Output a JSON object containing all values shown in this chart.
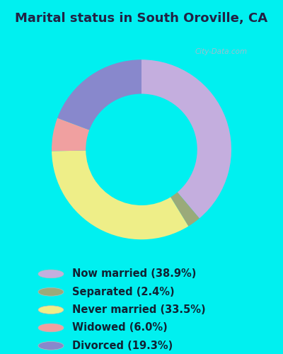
{
  "title": "Marital status in South Oroville, CA",
  "categories": [
    "Now married",
    "Separated",
    "Never married",
    "Widowed",
    "Divorced"
  ],
  "values": [
    38.9,
    2.4,
    33.5,
    6.0,
    19.3
  ],
  "colors": [
    "#c4aede",
    "#9aaa7a",
    "#eeee88",
    "#f0a0a0",
    "#8888cc"
  ],
  "legend_labels": [
    "Now married (38.9%)",
    "Separated (2.4%)",
    "Never married (33.5%)",
    "Widowed (6.0%)",
    "Divorced (19.3%)"
  ],
  "bg_color_outer": "#00f0f0",
  "bg_color_inner_top": "#e8f5ef",
  "bg_color_inner_bot": "#d0ede0",
  "watermark": "City-Data.com",
  "title_fontsize": 13,
  "legend_fontsize": 10.5,
  "donut_width": 0.38
}
